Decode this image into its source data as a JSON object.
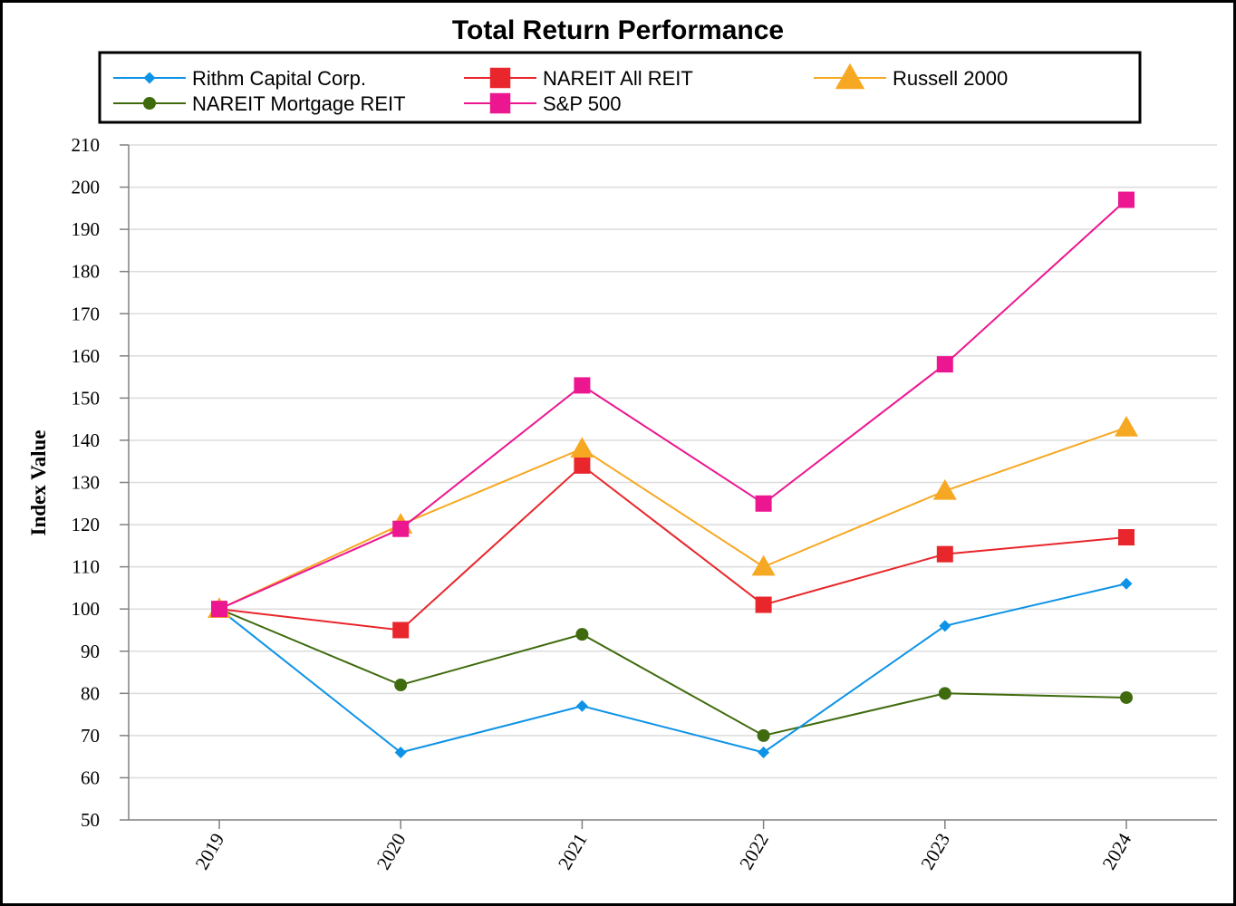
{
  "chart_data": {
    "type": "line",
    "title": "Total Return Performance",
    "xlabel": "",
    "ylabel": "Index Value",
    "ylim": [
      50,
      210
    ],
    "y_ticks": [
      50,
      60,
      70,
      80,
      90,
      100,
      110,
      120,
      130,
      140,
      150,
      160,
      170,
      180,
      190,
      200,
      210
    ],
    "grid": true,
    "legend_position": "top",
    "x": [
      "2019",
      "2020",
      "2021",
      "2022",
      "2023",
      "2024"
    ],
    "series": [
      {
        "name": "Rithm Capital Corp.",
        "color": "#0d93e6",
        "marker": "diamond",
        "values": [
          100,
          66,
          77,
          66,
          96,
          106
        ]
      },
      {
        "name": "NAREIT All REIT",
        "color": "#e8262b",
        "marker": "square",
        "values": [
          100,
          95,
          134,
          101,
          113,
          117
        ]
      },
      {
        "name": "Russell 2000",
        "color": "#f7a823",
        "marker": "triangle",
        "values": [
          100,
          120,
          138,
          110,
          128,
          143
        ]
      },
      {
        "name": "NAREIT Mortgage REIT",
        "color": "#3f6b0e",
        "marker": "circle",
        "values": [
          100,
          82,
          94,
          70,
          80,
          79
        ]
      },
      {
        "name": "S&P 500",
        "color": "#ec1690",
        "marker": "square",
        "values": [
          100,
          119,
          153,
          125,
          158,
          197
        ]
      }
    ]
  }
}
